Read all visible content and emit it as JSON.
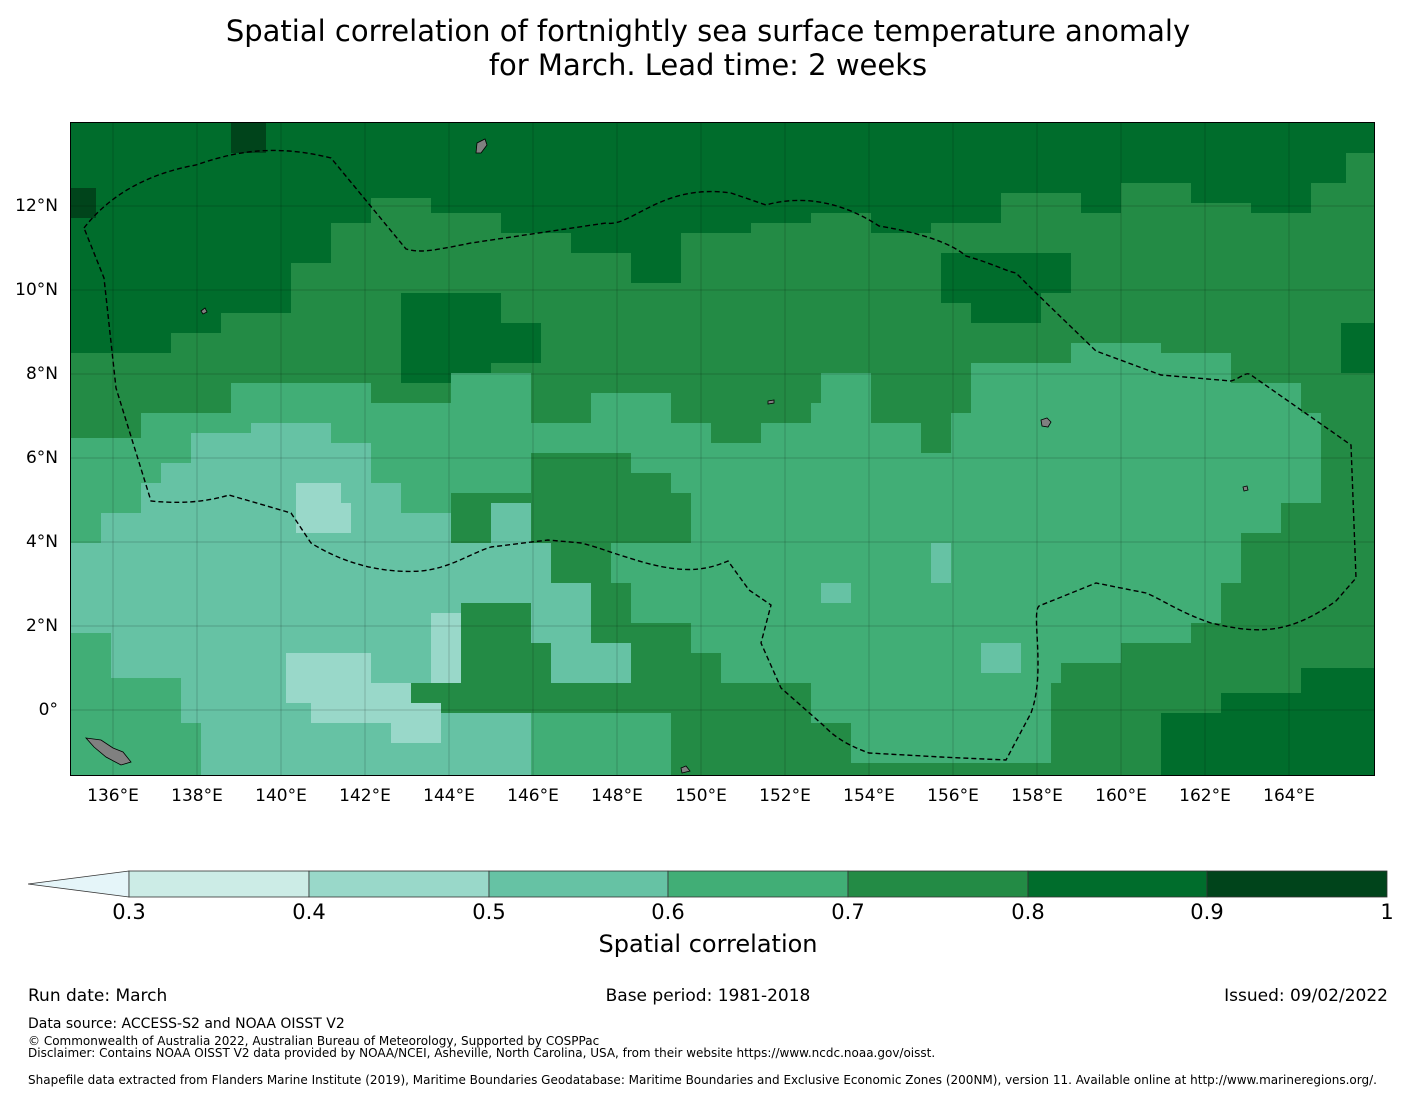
{
  "title": {
    "line1": "Spatial correlation of fortnightly sea surface temperature anomaly",
    "line2": "for March. Lead time: 2 weeks"
  },
  "map": {
    "lon_range": [
      135,
      166
    ],
    "lat_range": [
      -1.5,
      14
    ],
    "lon_labels": [
      "136°E",
      "138°E",
      "140°E",
      "142°E",
      "144°E",
      "146°E",
      "148°E",
      "150°E",
      "152°E",
      "154°E",
      "156°E",
      "158°E",
      "160°E",
      "162°E",
      "164°E"
    ],
    "lat_labels": [
      "12°N",
      "10°N",
      "8°N",
      "6°N",
      "4°N",
      "2°N",
      "0°"
    ],
    "land_color": "#808080",
    "eez_color": "#000000"
  },
  "colorbar": {
    "title": "Spatial correlation",
    "ticks": [
      "0.3",
      "0.4",
      "0.5",
      "0.6",
      "0.7",
      "0.8",
      "0.9",
      "1"
    ],
    "colors": [
      "#e5f5f9",
      "#ccece6",
      "#99d8c9",
      "#66c2a4",
      "#41ae76",
      "#238b45",
      "#006d2c",
      "#00441b"
    ]
  },
  "footer": {
    "run_date": "Run date: March",
    "base_period": "Base period: 1981-2018",
    "issued": "Issued: 09/02/2022",
    "data_source": "Data source: ACCESS-S2 and NOAA OISST V2",
    "copyright": "© Commonwealth of Australia 2022, Australian Bureau of Meteorology, Supported by COSPPac",
    "disclaimer": "Disclaimer: Contains NOAA OISST V2 data provided by NOAA/NCEI, Asheville, North Carolina, USA, from their website https://www.ncdc.noaa.gov/oisst.",
    "shapefile": "Shapefile data extracted from Flanders Marine Institute (2019), Maritime Boundaries Geodatabase: Maritime Boundaries and Exclusive Economic Zones (200NM), version 11. Available online at http://www.marineregions.org/."
  }
}
